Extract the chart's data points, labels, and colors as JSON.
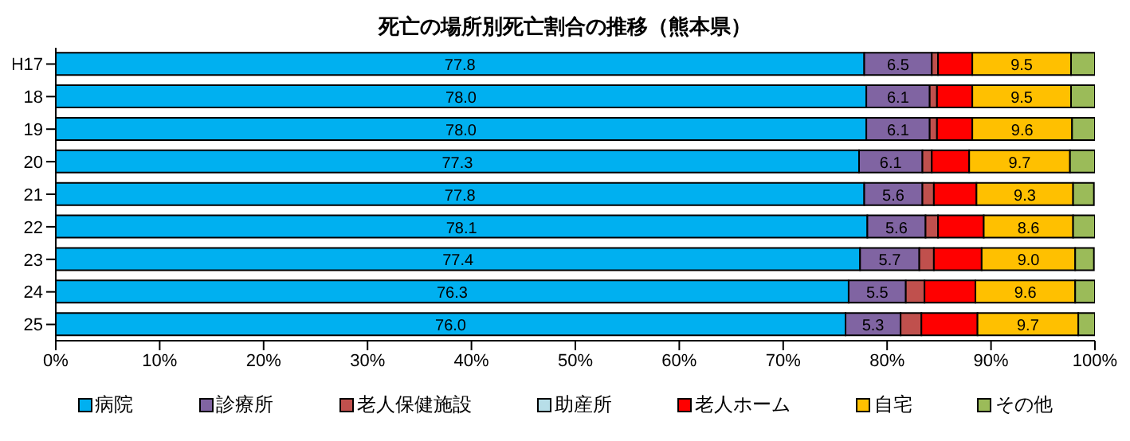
{
  "chart_data": {
    "type": "bar",
    "orientation": "horizontal",
    "stacked": true,
    "title": "死亡の場所別死亡割合の推移（熊本県）",
    "categories": [
      "H17",
      "18",
      "19",
      "20",
      "21",
      "22",
      "23",
      "24",
      "25"
    ],
    "series": [
      {
        "name": "病院",
        "color": "#00b0f0",
        "values": [
          77.8,
          78.0,
          78.0,
          77.3,
          77.8,
          78.1,
          77.4,
          76.3,
          76.0
        ],
        "value_labels": [
          "77.8",
          "78.0",
          "78.0",
          "77.3",
          "77.8",
          "78.1",
          "77.4",
          "76.3",
          "76.0"
        ]
      },
      {
        "name": "診療所",
        "color": "#8064a2",
        "values": [
          6.5,
          6.1,
          6.1,
          6.1,
          5.6,
          5.6,
          5.7,
          5.5,
          5.3
        ],
        "value_labels": [
          "6.5",
          "6.1",
          "6.1",
          "6.1",
          "5.6",
          "5.6",
          "5.7",
          "5.5",
          "5.3"
        ]
      },
      {
        "name": "老人保健施設",
        "color": "#c0504d",
        "values": [
          0.6,
          0.7,
          0.7,
          0.9,
          1.1,
          1.2,
          1.4,
          1.8,
          2.0
        ]
      },
      {
        "name": "助産所",
        "color": "#b7dee8",
        "values": [
          0,
          0,
          0,
          0,
          0,
          0,
          0,
          0,
          0
        ]
      },
      {
        "name": "老人ホーム",
        "color": "#ff0000",
        "values": [
          3.3,
          3.4,
          3.4,
          3.6,
          4.1,
          4.4,
          4.6,
          4.9,
          5.4
        ]
      },
      {
        "name": "自宅",
        "color": "#ffc000",
        "values": [
          9.5,
          9.5,
          9.6,
          9.7,
          9.3,
          8.6,
          9.0,
          9.6,
          9.7
        ],
        "value_labels": [
          "9.5",
          "9.5",
          "9.6",
          "9.7",
          "9.3",
          "8.6",
          "9.0",
          "9.6",
          "9.7"
        ]
      },
      {
        "name": "その他",
        "color": "#9bbb59",
        "values": [
          2.3,
          2.3,
          2.2,
          2.4,
          2.0,
          2.1,
          1.8,
          1.9,
          1.6
        ]
      }
    ],
    "xlim": [
      0,
      100
    ],
    "xticks": [
      {
        "value": 0,
        "label": "0%"
      },
      {
        "value": 10,
        "label": "10%"
      },
      {
        "value": 20,
        "label": "20%"
      },
      {
        "value": 30,
        "label": "30%"
      },
      {
        "value": 40,
        "label": "40%"
      },
      {
        "value": 50,
        "label": "50%"
      },
      {
        "value": 60,
        "label": "60%"
      },
      {
        "value": 70,
        "label": "70%"
      },
      {
        "value": 80,
        "label": "80%"
      },
      {
        "value": 90,
        "label": "90%"
      },
      {
        "value": 100,
        "label": "100%"
      }
    ],
    "legend": "bottom"
  }
}
